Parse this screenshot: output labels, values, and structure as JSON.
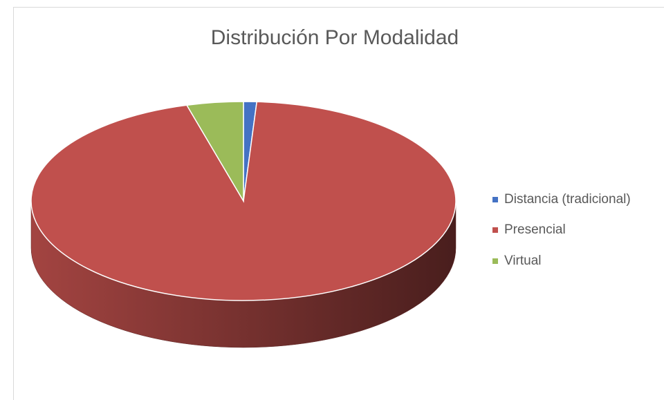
{
  "chart_data": {
    "type": "pie3d",
    "title": "Distribución Por Modalidad",
    "categories": [
      "Distancia (tradicional)",
      "Presencial",
      "Virtual"
    ],
    "values": [
      1,
      94.7,
      4.3
    ],
    "colors": [
      "#4472c4",
      "#c0504d",
      "#9bbb59"
    ],
    "legend": "right"
  }
}
